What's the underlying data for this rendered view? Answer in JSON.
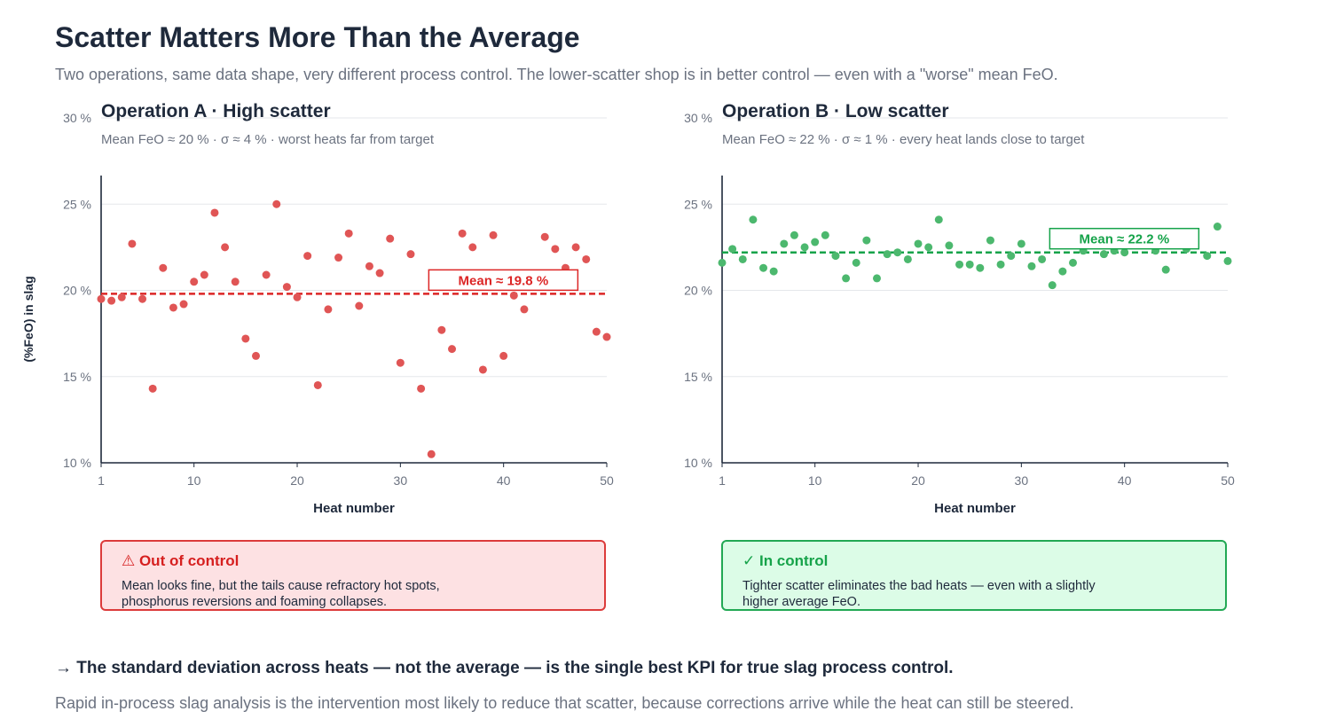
{
  "title": "Scatter Matters More Than the Average",
  "subtitle": "Two operations, same data shape, very different process control. The lower-scatter shop is in better control — even with a \"worse\" mean FeO.",
  "y_axis_title": "(%FeO) in slag",
  "cards": [
    {
      "title": "⚠ Out of control",
      "body": "Mean looks fine, but the tails cause refractory hot spots, phosphorus reversions and foaming collapses.",
      "color": "#dc2626"
    },
    {
      "title": "✓ In control",
      "body": "Tighter scatter eliminates the bad heats — even with a slightly higher average FeO.",
      "color": "#16a34a"
    }
  ],
  "takeaway": "→ The standard deviation across heats — not the average — is the single best KPI for true slag process control.",
  "footnote": "Rapid in-process slag analysis is the intervention most likely to reduce that scatter, because corrections arrive while the heat can still be steered.",
  "chart_data": [
    {
      "type": "scatter",
      "title": "Operation A · High scatter",
      "subtitle": "Mean FeO ≈ 20 % · σ ≈ 4 % · worst heats far from target",
      "xlabel": "Heat number",
      "ylabel": "(%FeO) in slag",
      "xlim": [
        1,
        50
      ],
      "ylim": [
        10,
        30
      ],
      "x_ticks": [
        1,
        10,
        20,
        30,
        40,
        50
      ],
      "y_ticks": [
        10,
        15,
        20,
        25,
        30
      ],
      "y_tick_labels": [
        "10 %",
        "15 %",
        "20 %",
        "25 %",
        "30 %"
      ],
      "grid": true,
      "color": "#e05555",
      "mean": 19.8,
      "mean_label": "Mean ≈ 19.8 %",
      "mean_color": "#dc2626",
      "x": [
        1,
        2,
        3,
        4,
        5,
        6,
        7,
        8,
        9,
        10,
        11,
        12,
        13,
        14,
        15,
        16,
        17,
        18,
        19,
        20,
        21,
        22,
        23,
        24,
        25,
        26,
        27,
        28,
        29,
        30,
        31,
        32,
        33,
        34,
        35,
        36,
        37,
        38,
        39,
        40,
        41,
        42,
        43,
        44,
        45,
        46,
        47,
        48,
        49,
        50
      ],
      "y": [
        19.5,
        19.4,
        19.6,
        22.7,
        19.5,
        14.3,
        21.3,
        19.0,
        19.2,
        20.5,
        20.9,
        24.5,
        22.5,
        20.5,
        17.2,
        16.2,
        20.9,
        25.0,
        20.2,
        19.6,
        22.0,
        14.5,
        18.9,
        21.9,
        23.3,
        19.1,
        21.4,
        21.0,
        23.0,
        15.8,
        22.1,
        14.3,
        10.5,
        17.7,
        16.6,
        23.3,
        22.5,
        15.4,
        23.2,
        16.2,
        19.7,
        18.9,
        null,
        23.1,
        22.4,
        21.3,
        22.5,
        21.8,
        17.6,
        17.3
      ]
    },
    {
      "type": "scatter",
      "title": "Operation B · Low scatter",
      "subtitle": "Mean FeO ≈ 22 % · σ ≈ 1 % · every heat lands close to target",
      "xlabel": "Heat number",
      "ylabel": "(%FeO) in slag",
      "xlim": [
        1,
        50
      ],
      "ylim": [
        10,
        30
      ],
      "x_ticks": [
        1,
        10,
        20,
        30,
        40,
        50
      ],
      "y_ticks": [
        10,
        15,
        20,
        25,
        30
      ],
      "y_tick_labels": [
        "10 %",
        "15 %",
        "20 %",
        "25 %",
        "30 %"
      ],
      "grid": true,
      "color": "#4cb86e",
      "mean": 22.2,
      "mean_label": "Mean ≈ 22.2 %",
      "mean_color": "#16a34a",
      "x": [
        1,
        2,
        3,
        4,
        5,
        6,
        7,
        8,
        9,
        10,
        11,
        12,
        13,
        14,
        15,
        16,
        17,
        18,
        19,
        20,
        21,
        22,
        23,
        24,
        25,
        26,
        27,
        28,
        29,
        30,
        31,
        32,
        33,
        34,
        35,
        36,
        37,
        38,
        39,
        40,
        41,
        42,
        43,
        44,
        45,
        46,
        47,
        48,
        49,
        50
      ],
      "y": [
        21.6,
        22.4,
        21.8,
        24.1,
        21.3,
        21.1,
        22.7,
        23.2,
        22.5,
        22.8,
        23.2,
        22.0,
        20.7,
        21.6,
        22.9,
        20.7,
        22.1,
        22.2,
        21.8,
        22.7,
        22.5,
        24.1,
        22.6,
        21.5,
        21.5,
        21.3,
        22.9,
        21.5,
        22.0,
        22.7,
        21.4,
        21.8,
        20.3,
        21.1,
        21.6,
        22.3,
        null,
        22.1,
        22.3,
        22.2,
        null,
        null,
        22.3,
        21.2,
        null,
        22.4,
        null,
        22.0,
        23.7,
        21.7
      ]
    }
  ]
}
